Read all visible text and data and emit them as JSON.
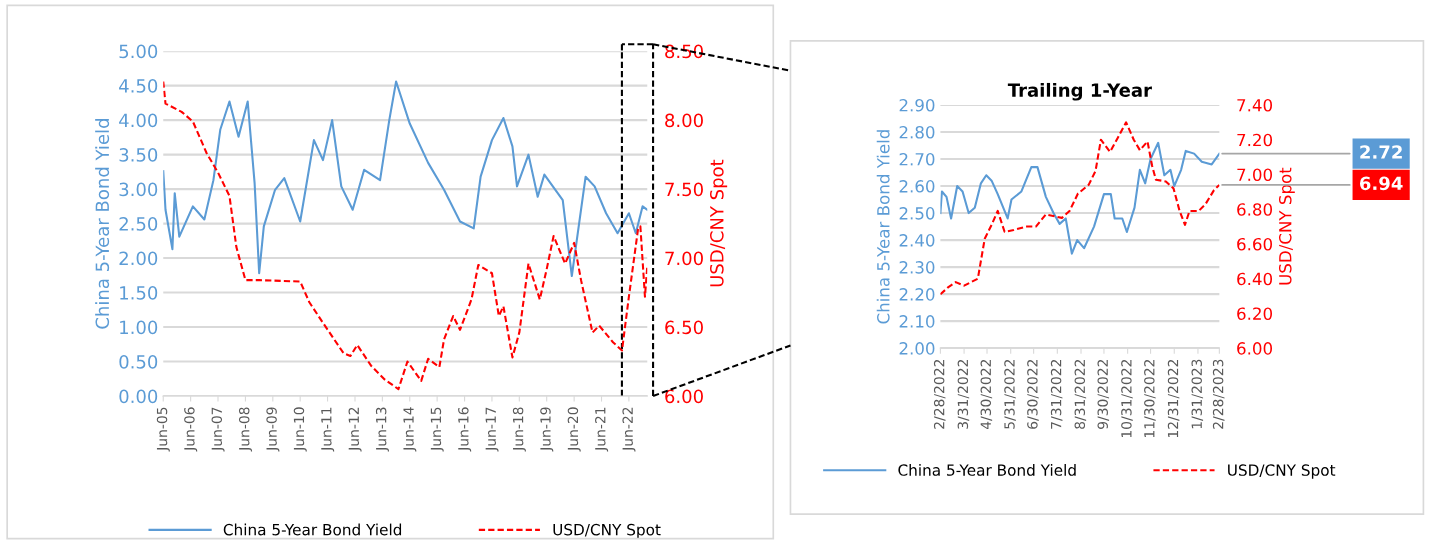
{
  "chart_data": [
    {
      "type": "line",
      "ylabel": "China 5-Year Bond Yield",
      "y2label": "USD/CNY Spot",
      "xlim": [
        "2005-06",
        "2023-02"
      ],
      "xticks": [
        {
          "value": "2005-06",
          "label": "Jun-05"
        },
        {
          "value": "2006-06",
          "label": "Jun-06"
        },
        {
          "value": "2007-06",
          "label": "Jun-07"
        },
        {
          "value": "2008-06",
          "label": "Jun-08"
        },
        {
          "value": "2009-06",
          "label": "Jun-09"
        },
        {
          "value": "2010-06",
          "label": "Jun-10"
        },
        {
          "value": "2011-06",
          "label": "Jun-11"
        },
        {
          "value": "2012-06",
          "label": "Jun-12"
        },
        {
          "value": "2013-06",
          "label": "Jun-13"
        },
        {
          "value": "2014-06",
          "label": "Jun-14"
        },
        {
          "value": "2015-06",
          "label": "Jun-15"
        },
        {
          "value": "2016-06",
          "label": "Jun-16"
        },
        {
          "value": "2017-06",
          "label": "Jun-17"
        },
        {
          "value": "2018-06",
          "label": "Jun-18"
        },
        {
          "value": "2019-06",
          "label": "Jun-19"
        },
        {
          "value": "2020-06",
          "label": "Jun-20"
        },
        {
          "value": "2021-06",
          "label": "Jun-21"
        },
        {
          "value": "2022-06",
          "label": "Jun-22"
        }
      ],
      "ylim": [
        0,
        5
      ],
      "yticks": [
        {
          "value": 0,
          "label": "0.00"
        },
        {
          "value": 0.5,
          "label": "0.50"
        },
        {
          "value": 1,
          "label": "1.00"
        },
        {
          "value": 1.5,
          "label": "1.50"
        },
        {
          "value": 2,
          "label": "2.00"
        },
        {
          "value": 2.5,
          "label": "2.50"
        },
        {
          "value": 3,
          "label": "3.00"
        },
        {
          "value": 3.5,
          "label": "3.50"
        },
        {
          "value": 4,
          "label": "4.00"
        },
        {
          "value": 4.5,
          "label": "4.50"
        },
        {
          "value": 5,
          "label": "5.00"
        }
      ],
      "y2lim": [
        6,
        8.5
      ],
      "y2ticks": [
        {
          "value": 6,
          "label": "6.00"
        },
        {
          "value": 6.5,
          "label": "6.50"
        },
        {
          "value": 7,
          "label": "7.00"
        },
        {
          "value": 7.5,
          "label": "7.50"
        },
        {
          "value": 8,
          "label": "8.00"
        },
        {
          "value": 8.5,
          "label": "8.50"
        }
      ],
      "grid": "y",
      "legend": "bottom",
      "ref_lines": [
        {
          "axis": "x",
          "value": "2022-02-28",
          "color": "#000000",
          "line_style": "dashed"
        }
      ],
      "series": [
        {
          "name": "China 5-Year Bond Yield",
          "color": "#5b9bd5",
          "line_style": "solid",
          "x": [
            "2005-06",
            "2005-07",
            "2005-10",
            "2005-11",
            "2006-01",
            "2006-07",
            "2006-12",
            "2007-04",
            "2007-07",
            "2007-11",
            "2008-03",
            "2008-07",
            "2008-10",
            "2008-12",
            "2009-02",
            "2009-07",
            "2009-11",
            "2010-06",
            "2010-12",
            "2011-04",
            "2011-08",
            "2011-12",
            "2012-05",
            "2012-10",
            "2013-05",
            "2013-09",
            "2013-12",
            "2014-06",
            "2015-02",
            "2015-09",
            "2016-04",
            "2016-10",
            "2017-01",
            "2017-06",
            "2017-11",
            "2018-03",
            "2018-05",
            "2018-10",
            "2019-02",
            "2019-05",
            "2020-01",
            "2020-05",
            "2020-11",
            "2021-03",
            "2021-08",
            "2022-01",
            "2022-06",
            "2022-09",
            "2022-12",
            "2023-02"
          ],
          "values": [
            3.26,
            2.7,
            2.13,
            2.94,
            2.31,
            2.75,
            2.56,
            3.13,
            3.86,
            4.27,
            3.76,
            4.27,
            3.09,
            1.78,
            2.46,
            2.99,
            3.16,
            2.53,
            3.71,
            3.42,
            4.0,
            3.04,
            2.7,
            3.28,
            3.13,
            4.0,
            4.56,
            3.95,
            3.38,
            2.99,
            2.53,
            2.43,
            3.18,
            3.71,
            4.03,
            3.62,
            3.04,
            3.5,
            2.89,
            3.21,
            2.84,
            1.74,
            3.18,
            3.04,
            2.65,
            2.36,
            2.65,
            2.36,
            2.75,
            2.7
          ]
        },
        {
          "name": "USD/CNY Spot",
          "color": "#ff0000",
          "line_style": "dashed",
          "axis": "y2",
          "x": [
            "2005-06",
            "2005-07",
            "2006-02",
            "2006-07",
            "2007-01",
            "2007-06",
            "2007-11",
            "2008-02",
            "2008-06",
            "2008-12",
            "2010-06",
            "2010-10",
            "2011-04",
            "2012-01",
            "2012-04",
            "2012-07",
            "2013-01",
            "2013-07",
            "2014-01",
            "2014-05",
            "2014-11",
            "2015-02",
            "2015-07",
            "2015-09",
            "2016-01",
            "2016-04",
            "2016-09",
            "2016-12",
            "2017-06",
            "2017-09",
            "2017-11",
            "2018-03",
            "2018-06",
            "2018-10",
            "2019-03",
            "2019-06",
            "2019-09",
            "2020-02",
            "2020-06",
            "2020-09",
            "2021-02",
            "2021-05",
            "2021-11",
            "2022-03",
            "2022-06",
            "2022-10",
            "2022-11",
            "2023-01",
            "2023-02"
          ],
          "values": [
            8.28,
            8.12,
            8.06,
            7.99,
            7.76,
            7.62,
            7.45,
            7.08,
            6.84,
            6.84,
            6.83,
            6.68,
            6.53,
            6.31,
            6.29,
            6.37,
            6.22,
            6.12,
            6.05,
            6.25,
            6.11,
            6.27,
            6.21,
            6.41,
            6.58,
            6.48,
            6.7,
            6.95,
            6.89,
            6.58,
            6.65,
            6.28,
            6.46,
            6.96,
            6.7,
            6.92,
            7.16,
            6.96,
            7.11,
            6.84,
            6.46,
            6.51,
            6.39,
            6.33,
            6.72,
            7.21,
            7.23,
            6.72,
            6.94
          ]
        }
      ]
    },
    {
      "type": "line",
      "title": "Trailing 1-Year",
      "ylabel": "China 5-Year Bond Yield",
      "y2label": "USD/CNY Spot",
      "xlim": [
        "2022-02-28",
        "2023-02-28"
      ],
      "xticks": [
        {
          "value": "2022-02-28",
          "label": "2/28/2022"
        },
        {
          "value": "2022-03-31",
          "label": "3/31/2022"
        },
        {
          "value": "2022-04-30",
          "label": "4/30/2022"
        },
        {
          "value": "2022-05-31",
          "label": "5/31/2022"
        },
        {
          "value": "2022-06-30",
          "label": "6/30/2022"
        },
        {
          "value": "2022-07-31",
          "label": "7/31/2022"
        },
        {
          "value": "2022-08-31",
          "label": "8/31/2022"
        },
        {
          "value": "2022-09-30",
          "label": "9/30/2022"
        },
        {
          "value": "2022-10-31",
          "label": "10/31/2022"
        },
        {
          "value": "2022-11-30",
          "label": "11/30/2022"
        },
        {
          "value": "2022-12-31",
          "label": "12/31/2022"
        },
        {
          "value": "2023-01-31",
          "label": "1/31/2023"
        },
        {
          "value": "2023-02-28",
          "label": "2/28/2023"
        }
      ],
      "ylim": [
        2,
        2.9
      ],
      "yticks": [
        {
          "value": 2,
          "label": "2.00"
        },
        {
          "value": 2.1,
          "label": "2.10"
        },
        {
          "value": 2.2,
          "label": "2.20"
        },
        {
          "value": 2.3,
          "label": "2.30"
        },
        {
          "value": 2.4,
          "label": "2.40"
        },
        {
          "value": 2.5,
          "label": "2.50"
        },
        {
          "value": 2.6,
          "label": "2.60"
        },
        {
          "value": 2.7,
          "label": "2.70"
        },
        {
          "value": 2.8,
          "label": "2.80"
        },
        {
          "value": 2.9,
          "label": "2.90"
        }
      ],
      "y2lim": [
        6,
        7.4
      ],
      "y2ticks": [
        {
          "value": 6,
          "label": "6.00"
        },
        {
          "value": 6.2,
          "label": "6.20"
        },
        {
          "value": 6.4,
          "label": "6.40"
        },
        {
          "value": 6.6,
          "label": "6.60"
        },
        {
          "value": 6.8,
          "label": "6.80"
        },
        {
          "value": 7,
          "label": "7.00"
        },
        {
          "value": 7.2,
          "label": "7.20"
        },
        {
          "value": 7.4,
          "label": "7.40"
        }
      ],
      "grid": "y",
      "legend": "bottom",
      "annotations": [
        "2.72",
        "6.94"
      ],
      "series": [
        {
          "name": "China 5-Year Bond Yield",
          "color": "#5b9bd5",
          "line_style": "solid",
          "x": [
            "2022-02-28",
            "2022-03-02",
            "2022-03-08",
            "2022-03-14",
            "2022-03-22",
            "2022-03-29",
            "2022-04-06",
            "2022-04-14",
            "2022-04-22",
            "2022-04-29",
            "2022-05-06",
            "2022-05-14",
            "2022-05-27",
            "2022-06-01",
            "2022-06-14",
            "2022-06-27",
            "2022-07-05",
            "2022-07-16",
            "2022-07-26",
            "2022-08-03",
            "2022-08-11",
            "2022-08-19",
            "2022-08-26",
            "2022-09-04",
            "2022-09-17",
            "2022-09-30",
            "2022-10-09",
            "2022-10-14",
            "2022-10-24",
            "2022-10-30",
            "2022-11-09",
            "2022-11-16",
            "2022-11-23",
            "2022-11-30",
            "2022-12-10",
            "2022-12-18",
            "2022-12-26",
            "2022-12-31",
            "2023-01-09",
            "2023-01-15",
            "2023-01-26",
            "2023-02-05",
            "2023-02-18",
            "2023-02-28"
          ],
          "values": [
            2.5,
            2.58,
            2.56,
            2.48,
            2.6,
            2.58,
            2.5,
            2.52,
            2.61,
            2.64,
            2.62,
            2.57,
            2.48,
            2.55,
            2.58,
            2.67,
            2.67,
            2.56,
            2.5,
            2.46,
            2.48,
            2.35,
            2.4,
            2.37,
            2.45,
            2.57,
            2.57,
            2.48,
            2.48,
            2.43,
            2.52,
            2.66,
            2.61,
            2.7,
            2.76,
            2.64,
            2.66,
            2.6,
            2.66,
            2.73,
            2.72,
            2.69,
            2.68,
            2.72
          ]
        },
        {
          "name": "USD/CNY Spot",
          "color": "#ff0000",
          "line_style": "dashed",
          "axis": "y2",
          "x": [
            "2022-02-28",
            "2022-03-10",
            "2022-03-20",
            "2022-03-31",
            "2022-04-18",
            "2022-04-27",
            "2022-05-06",
            "2022-05-14",
            "2022-05-23",
            "2022-06-04",
            "2022-06-20",
            "2022-07-03",
            "2022-07-16",
            "2022-08-06",
            "2022-08-16",
            "2022-08-27",
            "2022-09-10",
            "2022-09-19",
            "2022-09-26",
            "2022-10-08",
            "2022-10-18",
            "2022-10-29",
            "2022-11-08",
            "2022-11-16",
            "2022-11-26",
            "2022-12-02",
            "2022-12-07",
            "2022-12-20",
            "2022-12-30",
            "2023-01-07",
            "2023-01-14",
            "2023-01-20",
            "2023-02-01",
            "2023-02-10",
            "2023-02-21",
            "2023-02-28"
          ],
          "values": [
            6.31,
            6.35,
            6.38,
            6.36,
            6.4,
            6.63,
            6.71,
            6.79,
            6.67,
            6.68,
            6.7,
            6.7,
            6.77,
            6.75,
            6.79,
            6.89,
            6.94,
            7.02,
            7.2,
            7.13,
            7.21,
            7.3,
            7.2,
            7.14,
            7.19,
            7.05,
            6.97,
            6.96,
            6.92,
            6.79,
            6.71,
            6.79,
            6.79,
            6.83,
            6.91,
            6.94
          ]
        }
      ]
    }
  ]
}
